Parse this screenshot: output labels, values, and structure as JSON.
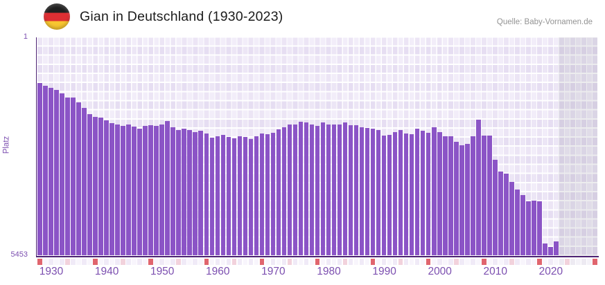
{
  "header": {
    "title": "Gian in Deutschland (1930-2023)",
    "source": "Quelle: Baby-Vornamen.de",
    "flag_icon": "german-flag-icon",
    "flag_colors": {
      "black": "#1f1f1f",
      "red": "#dd2f33",
      "gold": "#f7c631"
    }
  },
  "chart_data": {
    "type": "bar",
    "title": "Gian in Deutschland (1930-2023)",
    "xlabel": "",
    "ylabel": "Platz",
    "y_axis": {
      "top_label": "1",
      "bottom_label": "5453",
      "min": 1,
      "max": 5453,
      "inverted": true
    },
    "x_tick_labels": [
      "1930",
      "1940",
      "1950",
      "1960",
      "1970",
      "1980",
      "1990",
      "2000",
      "2010",
      "2020"
    ],
    "start_year": 1930,
    "end_year": 2023,
    "axis_end_year": 2030,
    "no_data_years": "2024-2030",
    "grid": true,
    "legend": "none",
    "series": [
      {
        "name": "Platz",
        "values": [
          1140,
          1210,
          1270,
          1315,
          1400,
          1500,
          1510,
          1630,
          1760,
          1915,
          1990,
          2010,
          2075,
          2145,
          2180,
          2220,
          2175,
          2230,
          2280,
          2220,
          2190,
          2210,
          2175,
          2095,
          2250,
          2310,
          2280,
          2320,
          2365,
          2335,
          2405,
          2500,
          2465,
          2440,
          2485,
          2525,
          2470,
          2490,
          2540,
          2470,
          2410,
          2425,
          2385,
          2295,
          2250,
          2175,
          2175,
          2105,
          2125,
          2175,
          2210,
          2135,
          2175,
          2175,
          2175,
          2135,
          2190,
          2190,
          2240,
          2265,
          2290,
          2325,
          2450,
          2435,
          2375,
          2320,
          2395,
          2425,
          2280,
          2335,
          2385,
          2250,
          2365,
          2480,
          2480,
          2610,
          2700,
          2670,
          2470,
          2060,
          2450,
          2450,
          3060,
          3360,
          3405,
          3605,
          3805,
          3935,
          4095,
          4085,
          4105,
          5145,
          5230,
          5095
        ]
      }
    ],
    "colors": {
      "bar": "#8b54c6",
      "axis": "#4c2173",
      "tick_label": "#7c4fb0",
      "plot_background": "#f2edf9",
      "no_data_overlay": "rgba(120,118,138,0.14)",
      "marker_decade": "#e0656e",
      "marker_half_decade": "#f2d2dc",
      "marker_even": "#f0eaf7",
      "marker_odd": "#f8f5fc",
      "marker_future_even": "#edeaf2",
      "marker_future_odd": "#f4f2f8"
    }
  }
}
